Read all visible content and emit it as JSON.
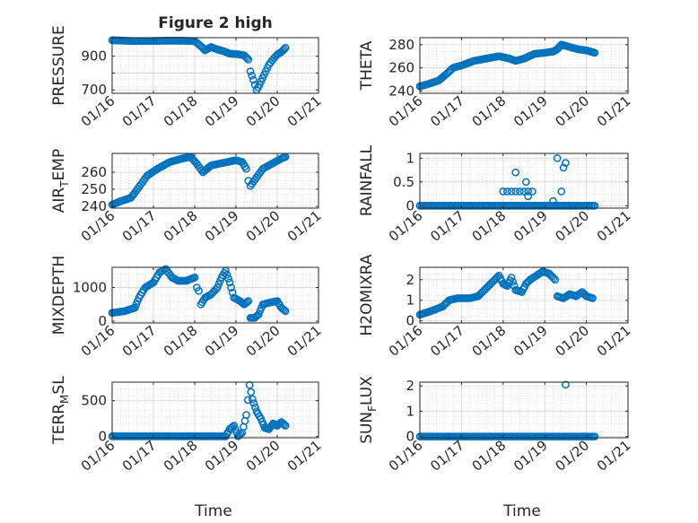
{
  "figure": {
    "title": "Figure 2 high"
  },
  "chart_data": [
    {
      "type": "scatter",
      "ylabel": "PRESSURE",
      "xlabel": "",
      "xticks": [
        "01/16",
        "01/17",
        "01/18",
        "01/19",
        "01/20",
        "01/21"
      ],
      "yticks": [
        700,
        800,
        900
      ],
      "ytick_labels": [
        "700",
        "",
        "900"
      ],
      "xlim": [
        0,
        5
      ],
      "ylim": [
        680,
        1010
      ],
      "grid": true,
      "color": "#0072BD",
      "segments": [
        [
          0.0,
          995
        ],
        [
          0.5,
          990
        ],
        [
          0.9,
          990
        ],
        [
          1.3,
          992
        ],
        [
          1.7,
          992
        ],
        [
          2.0,
          990
        ],
        [
          2.15,
          960
        ],
        [
          2.25,
          935
        ],
        [
          2.4,
          955
        ],
        [
          2.55,
          940
        ],
        [
          2.7,
          930
        ],
        [
          2.85,
          915
        ],
        [
          3.05,
          912
        ],
        [
          3.2,
          905
        ],
        [
          3.3,
          880
        ],
        [
          3.35,
          810
        ],
        [
          3.42,
          760
        ],
        [
          3.5,
          700
        ],
        [
          3.57,
          730
        ],
        [
          3.68,
          790
        ],
        [
          3.8,
          850
        ],
        [
          3.92,
          888
        ],
        [
          4.0,
          910
        ],
        [
          4.1,
          925
        ],
        [
          4.2,
          950
        ]
      ]
    },
    {
      "type": "scatter",
      "ylabel": "THETA",
      "xlabel": "",
      "xticks": [
        "01/16",
        "01/17",
        "01/18",
        "01/19",
        "01/20",
        "01/21"
      ],
      "yticks": [
        240,
        260,
        280
      ],
      "ytick_labels": [
        "240",
        "260",
        "280"
      ],
      "xlim": [
        0,
        5
      ],
      "ylim": [
        238,
        286
      ],
      "grid": true,
      "color": "#0072BD",
      "segments": [
        [
          0.0,
          244
        ],
        [
          0.2,
          246
        ],
        [
          0.45,
          249
        ],
        [
          0.65,
          255
        ],
        [
          0.8,
          260
        ],
        [
          1.0,
          262
        ],
        [
          1.3,
          266
        ],
        [
          1.6,
          268
        ],
        [
          1.9,
          270
        ],
        [
          2.15,
          268
        ],
        [
          2.3,
          266
        ],
        [
          2.5,
          268
        ],
        [
          2.75,
          272
        ],
        [
          3.0,
          273
        ],
        [
          3.2,
          274
        ],
        [
          3.3,
          276
        ],
        [
          3.4,
          280
        ],
        [
          3.6,
          278
        ],
        [
          3.8,
          276
        ],
        [
          4.0,
          275
        ],
        [
          4.2,
          273
        ]
      ]
    },
    {
      "type": "scatter",
      "ylabel": "AIR_TEMP",
      "ylabel_main": "AIR",
      "ylabel_sub": "T",
      "ylabel_rest": "EMP",
      "xlabel": "",
      "xticks": [
        "01/16",
        "01/17",
        "01/18",
        "01/19",
        "01/20",
        "01/21"
      ],
      "yticks": [
        240,
        250,
        260
      ],
      "ytick_labels": [
        "240",
        "250",
        "260"
      ],
      "xlim": [
        0,
        5
      ],
      "ylim": [
        239,
        271
      ],
      "grid": true,
      "color": "#0072BD",
      "segments": [
        [
          0.0,
          241
        ],
        [
          0.2,
          243
        ],
        [
          0.45,
          245
        ],
        [
          0.55,
          248
        ],
        [
          0.7,
          253
        ],
        [
          0.85,
          258
        ],
        [
          1.1,
          262
        ],
        [
          1.4,
          266
        ],
        [
          1.7,
          268
        ],
        [
          1.9,
          269
        ],
        [
          2.05,
          265
        ],
        [
          2.2,
          260
        ],
        [
          2.4,
          264
        ],
        [
          2.6,
          265
        ],
        [
          2.8,
          266
        ],
        [
          3.0,
          267
        ],
        [
          3.15,
          266
        ],
        [
          3.25,
          262
        ],
        [
          3.3,
          255
        ],
        [
          3.35,
          252
        ],
        [
          3.5,
          257
        ],
        [
          3.65,
          262
        ],
        [
          3.8,
          264
        ],
        [
          3.95,
          266
        ],
        [
          4.1,
          268
        ],
        [
          4.2,
          269
        ]
      ]
    },
    {
      "type": "scatter",
      "ylabel": "RAINFALL",
      "xlabel": "",
      "xticks": [
        "01/16",
        "01/17",
        "01/18",
        "01/19",
        "01/20",
        "01/21"
      ],
      "yticks": [
        0,
        0.5,
        1
      ],
      "ytick_labels": [
        "0",
        "0.5",
        "1"
      ],
      "xlim": [
        0,
        5
      ],
      "ylim": [
        -0.05,
        1.1
      ],
      "grid": true,
      "color": "#0072BD",
      "zero_run": [
        [
          0.0,
          4.2
        ]
      ],
      "points": [
        [
          2.0,
          0.3
        ],
        [
          2.1,
          0.3
        ],
        [
          2.2,
          0.3
        ],
        [
          2.3,
          0.3
        ],
        [
          2.4,
          0.3
        ],
        [
          2.5,
          0.3
        ],
        [
          2.6,
          0.3
        ],
        [
          2.7,
          0.3
        ],
        [
          2.3,
          0.7
        ],
        [
          2.55,
          0.5
        ],
        [
          2.6,
          0.2
        ],
        [
          3.2,
          0.1
        ],
        [
          3.3,
          1.0
        ],
        [
          3.4,
          0.3
        ],
        [
          3.5,
          0.9
        ],
        [
          3.45,
          0.8
        ],
        [
          3.1,
          0.0
        ]
      ]
    },
    {
      "type": "scatter",
      "ylabel": "MIXDEPTH",
      "xlabel": "",
      "xticks": [
        "01/16",
        "01/17",
        "01/18",
        "01/19",
        "01/20",
        "01/21"
      ],
      "yticks": [
        0,
        1000
      ],
      "ytick_labels": [
        "0",
        "1000"
      ],
      "xlim": [
        0,
        5
      ],
      "ylim": [
        -50,
        1600
      ],
      "grid": true,
      "color": "#0072BD",
      "segments": [
        [
          0.0,
          250
        ],
        [
          0.3,
          300
        ],
        [
          0.55,
          400
        ],
        [
          0.65,
          700
        ],
        [
          0.8,
          1000
        ],
        [
          1.0,
          1150
        ],
        [
          1.15,
          1450
        ],
        [
          1.3,
          1550
        ],
        [
          1.45,
          1300
        ],
        [
          1.6,
          1200
        ],
        [
          1.8,
          1200
        ],
        [
          2.0,
          1300
        ],
        [
          2.05,
          1000
        ],
        [
          2.1,
          900
        ],
        [
          2.15,
          500
        ],
        [
          2.25,
          700
        ],
        [
          2.4,
          800
        ],
        [
          2.55,
          1000
        ],
        [
          2.65,
          1300
        ],
        [
          2.75,
          1500
        ],
        [
          2.85,
          1150
        ],
        [
          2.95,
          700
        ],
        [
          3.1,
          600
        ],
        [
          3.2,
          500
        ],
        [
          3.3,
          600
        ],
        [
          3.35,
          100
        ],
        [
          3.45,
          100
        ],
        [
          3.55,
          200
        ],
        [
          3.65,
          500
        ],
        [
          3.8,
          550
        ],
        [
          4.0,
          600
        ],
        [
          4.1,
          400
        ],
        [
          4.2,
          300
        ]
      ]
    },
    {
      "type": "scatter",
      "ylabel": "H2OMIXRA",
      "xlabel": "",
      "xticks": [
        "01/16",
        "01/17",
        "01/18",
        "01/19",
        "01/20",
        "01/21"
      ],
      "yticks": [
        0,
        1,
        2
      ],
      "ytick_labels": [
        "0",
        "1",
        "2"
      ],
      "xlim": [
        0,
        5
      ],
      "ylim": [
        -0.1,
        2.6
      ],
      "grid": true,
      "color": "#0072BD",
      "segments": [
        [
          0.0,
          0.3
        ],
        [
          0.3,
          0.5
        ],
        [
          0.55,
          0.7
        ],
        [
          0.7,
          1.0
        ],
        [
          0.9,
          1.1
        ],
        [
          1.2,
          1.1
        ],
        [
          1.4,
          1.2
        ],
        [
          1.6,
          1.6
        ],
        [
          1.8,
          2.0
        ],
        [
          1.9,
          2.2
        ],
        [
          2.0,
          1.8
        ],
        [
          2.1,
          1.7
        ],
        [
          2.2,
          2.1
        ],
        [
          2.3,
          1.5
        ],
        [
          2.45,
          1.4
        ],
        [
          2.55,
          1.8
        ],
        [
          2.65,
          2.0
        ],
        [
          2.8,
          2.2
        ],
        [
          2.95,
          2.4
        ],
        [
          3.1,
          2.3
        ],
        [
          3.25,
          2.0
        ],
        [
          3.3,
          1.2
        ],
        [
          3.45,
          1.1
        ],
        [
          3.6,
          1.3
        ],
        [
          3.75,
          1.2
        ],
        [
          3.9,
          1.4
        ],
        [
          4.0,
          1.2
        ],
        [
          4.15,
          1.1
        ]
      ]
    },
    {
      "type": "scatter",
      "ylabel": "TERR_MSL",
      "ylabel_main": "TERR",
      "ylabel_sub": "M",
      "ylabel_rest": "SL",
      "xlabel": "Time",
      "xticks": [
        "01/16",
        "01/17",
        "01/18",
        "01/19",
        "01/20",
        "01/21"
      ],
      "yticks": [
        0,
        500
      ],
      "ytick_labels": [
        "0",
        "500"
      ],
      "xlim": [
        0,
        5
      ],
      "ylim": [
        -20,
        760
      ],
      "grid": true,
      "color": "#0072BD",
      "zero_run": [
        [
          0.0,
          2.75
        ]
      ],
      "segments": [
        [
          2.75,
          0
        ],
        [
          2.85,
          100
        ],
        [
          2.95,
          150
        ],
        [
          3.05,
          0
        ],
        [
          3.15,
          50
        ],
        [
          3.25,
          300
        ],
        [
          3.33,
          720
        ],
        [
          3.4,
          520
        ],
        [
          3.5,
          350
        ],
        [
          3.6,
          250
        ],
        [
          3.7,
          120
        ],
        [
          3.8,
          100
        ],
        [
          3.9,
          180
        ],
        [
          4.0,
          150
        ],
        [
          4.1,
          200
        ],
        [
          4.2,
          150
        ]
      ]
    },
    {
      "type": "scatter",
      "ylabel": "SUN_FLUX",
      "ylabel_main": "SUN",
      "ylabel_sub": "F",
      "ylabel_rest": "LUX",
      "xlabel": "Time",
      "xticks": [
        "01/16",
        "01/17",
        "01/18",
        "01/19",
        "01/20",
        "01/21"
      ],
      "yticks": [
        0,
        1,
        2
      ],
      "ytick_labels": [
        "0",
        "1",
        "2"
      ],
      "xlim": [
        0,
        5
      ],
      "ylim": [
        -0.05,
        2.15
      ],
      "grid": true,
      "color": "#0072BD",
      "zero_run": [
        [
          0.0,
          4.2
        ]
      ],
      "points": [
        [
          3.5,
          2.05
        ]
      ]
    }
  ]
}
